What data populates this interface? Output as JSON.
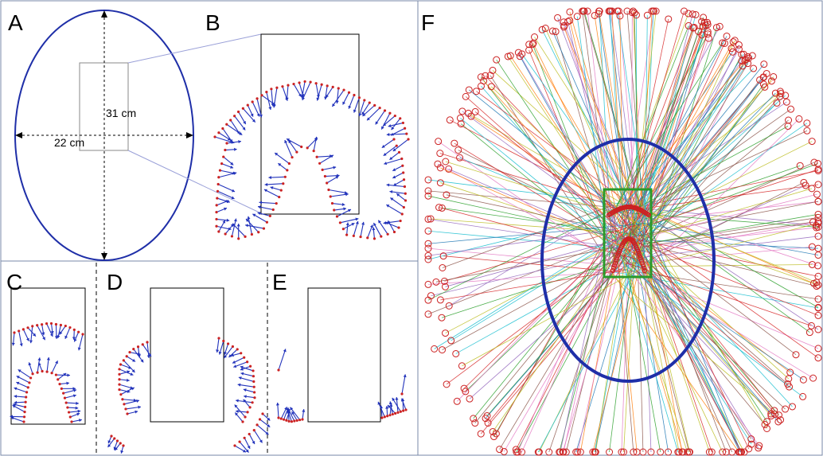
{
  "panels": {
    "A": {
      "label": "A",
      "width_text": "22 cm",
      "height_text": "31 cm"
    },
    "B": {
      "label": "B"
    },
    "C": {
      "label": "C"
    },
    "D": {
      "label": "D"
    },
    "E": {
      "label": "E"
    },
    "F": {
      "label": "F"
    }
  },
  "colors": {
    "ellipse": "#1f2fa8",
    "arrow": "#2233bb",
    "sensor": "#cc2222",
    "region_box": "#2a9a2a",
    "frame": "#7a8aa8",
    "guide_line": "#9aa0d8"
  },
  "ray_colors": [
    "#1f77b4",
    "#ff7f0e",
    "#2ca02c",
    "#d62728",
    "#9467bd",
    "#8c564b",
    "#17becf",
    "#bcbd22",
    "#e377c2"
  ]
}
